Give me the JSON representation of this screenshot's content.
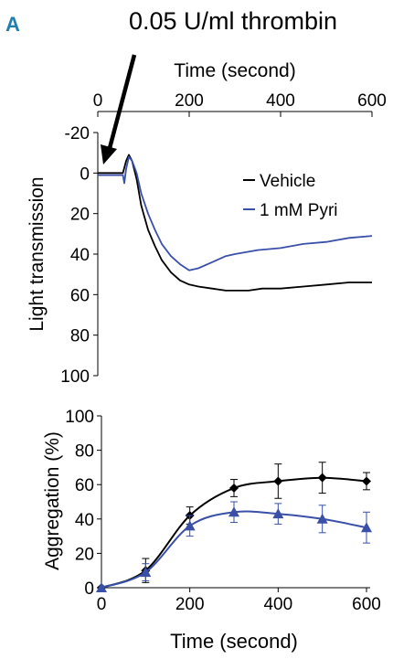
{
  "panel_label": "A",
  "colors": {
    "vehicle": "#000000",
    "pyri": "#3a50a8",
    "panel_label": "#1f7fb0"
  },
  "chart_data": [
    {
      "type": "line",
      "annotation": "0.05 U/ml thrombin",
      "xlabel": "Time (second)",
      "ylabel": "Light transmission",
      "xlim": [
        0,
        600
      ],
      "ylim": [
        -20,
        100
      ],
      "y_inverted": true,
      "x_ticks": [
        "0",
        "200",
        "400",
        "600"
      ],
      "y_ticks": [
        "-20",
        "0",
        "20",
        "40",
        "60",
        "80",
        "100"
      ],
      "x_axis_position": "top",
      "legend_position": "top-right",
      "grid": false,
      "series": [
        {
          "name": "Vehicle",
          "color": "#000000",
          "x": [
            0,
            20,
            40,
            55,
            62,
            68,
            75,
            85,
            95,
            110,
            125,
            140,
            160,
            180,
            200,
            220,
            250,
            280,
            300,
            330,
            360,
            400,
            450,
            500,
            550,
            600
          ],
          "y": [
            0,
            0,
            0,
            0,
            -6,
            -9,
            -6,
            3,
            16,
            28,
            36,
            43,
            49,
            53,
            55,
            56,
            57,
            58,
            58,
            58,
            57,
            57,
            56,
            55,
            54,
            54
          ]
        },
        {
          "name": "1 mM Pyri",
          "color": "#3a50a8",
          "x": [
            0,
            20,
            40,
            55,
            58,
            62,
            68,
            75,
            85,
            95,
            110,
            125,
            140,
            160,
            180,
            200,
            220,
            250,
            280,
            300,
            350,
            400,
            450,
            500,
            550,
            600
          ],
          "y": [
            1,
            1,
            1,
            1,
            5,
            -2,
            -8,
            -6,
            0,
            10,
            20,
            28,
            35,
            41,
            45,
            48,
            47,
            44,
            41,
            40,
            38,
            37,
            35,
            34,
            32,
            31
          ]
        }
      ]
    },
    {
      "type": "line",
      "xlabel": "Time (second)",
      "ylabel": "Aggregation  (%)",
      "xlim": [
        0,
        600
      ],
      "ylim": [
        0,
        100
      ],
      "x_ticks": [
        "0",
        "200",
        "400",
        "600"
      ],
      "y_ticks": [
        "0",
        "20",
        "40",
        "60",
        "80",
        "100"
      ],
      "grid": false,
      "series": [
        {
          "name": "Vehicle",
          "marker": "diamond",
          "color": "#000000",
          "x": [
            0,
            100,
            200,
            300,
            400,
            500,
            600
          ],
          "y": [
            0,
            10,
            42,
            58,
            62,
            64,
            62
          ],
          "error": [
            0,
            7,
            5,
            5,
            10,
            9,
            5
          ]
        },
        {
          "name": "1 mM Pyri",
          "marker": "triangle",
          "color": "#3a50a8",
          "x": [
            0,
            100,
            200,
            300,
            400,
            500,
            600
          ],
          "y": [
            0,
            9,
            36,
            44,
            43,
            40,
            35
          ],
          "error": [
            0,
            5,
            6,
            6,
            6,
            8,
            9
          ]
        }
      ]
    }
  ]
}
